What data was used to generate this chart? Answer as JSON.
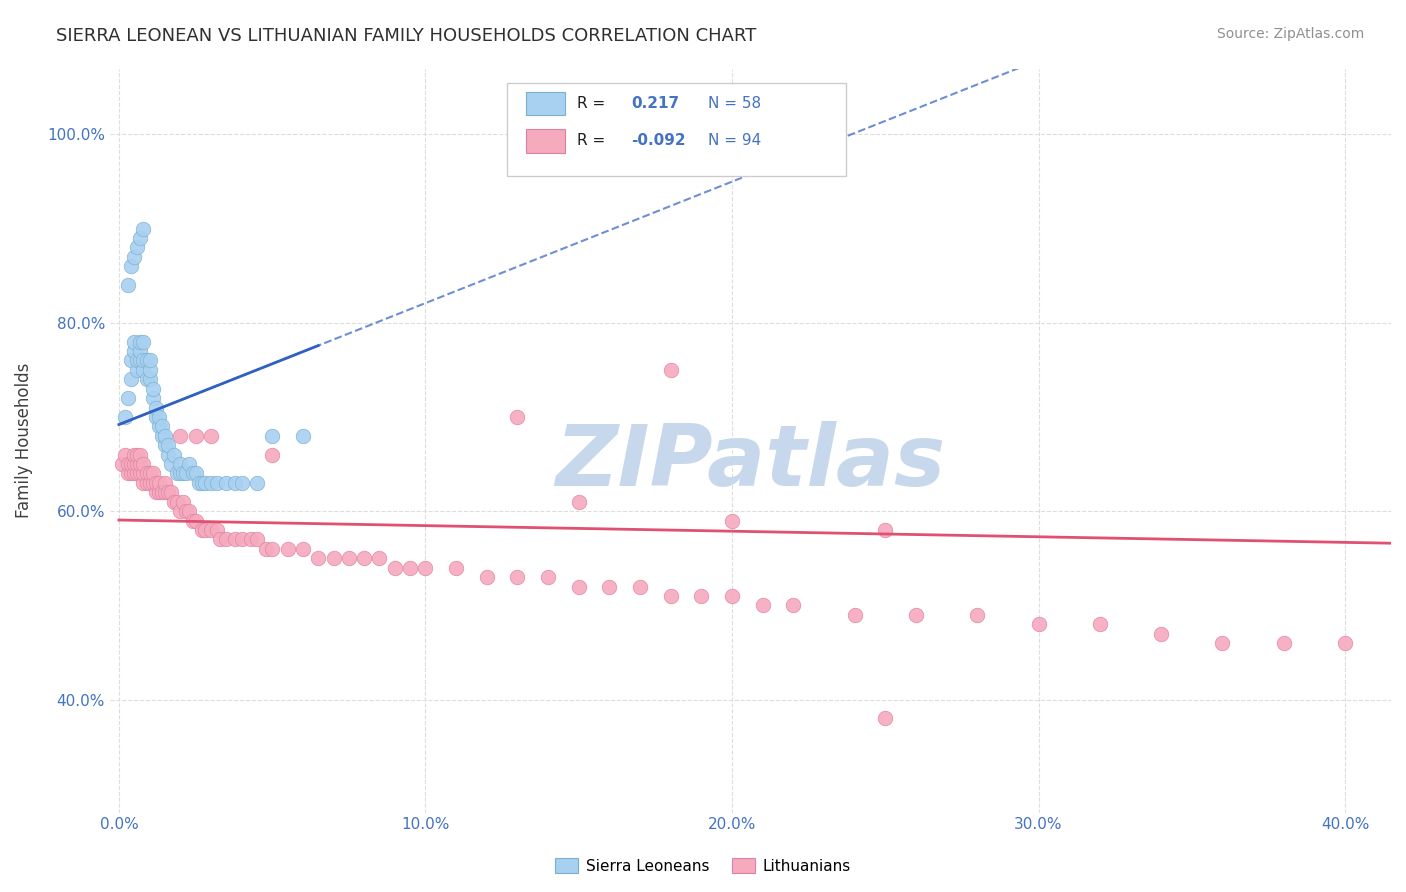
{
  "title": "SIERRA LEONEAN VS LITHUANIAN FAMILY HOUSEHOLDS CORRELATION CHART",
  "source": "Source: ZipAtlas.com",
  "ylabel": "Family Households",
  "x_ticks": [
    "0.0%",
    "10.0%",
    "20.0%",
    "30.0%",
    "40.0%"
  ],
  "x_tick_vals": [
    0.0,
    0.1,
    0.2,
    0.3,
    0.4
  ],
  "y_ticks": [
    "40.0%",
    "60.0%",
    "80.0%",
    "100.0%"
  ],
  "y_tick_vals": [
    0.4,
    0.6,
    0.8,
    1.0
  ],
  "y_min": 0.28,
  "y_max": 1.07,
  "x_min": -0.003,
  "x_max": 0.415,
  "legend_labels": [
    "Sierra Leoneans",
    "Lithuanians"
  ],
  "r_blue": 0.217,
  "n_blue": 58,
  "r_pink": -0.092,
  "n_pink": 94,
  "blue_color": "#A8D0F0",
  "pink_color": "#F5AABE",
  "blue_edge_color": "#7AAFD0",
  "pink_edge_color": "#E080A0",
  "blue_line_color": "#3060C0",
  "pink_line_color": "#E05070",
  "title_color": "#303030",
  "source_color": "#909090",
  "background_color": "#FFFFFF",
  "grid_color": "#DDDDDD",
  "tick_color": "#4472C4",
  "legend_r_color": "#4472C4",
  "watermark_color": "#C8D8EC",
  "blue_scatter_x": [
    0.002,
    0.003,
    0.004,
    0.004,
    0.005,
    0.005,
    0.006,
    0.006,
    0.007,
    0.007,
    0.007,
    0.008,
    0.008,
    0.008,
    0.009,
    0.009,
    0.01,
    0.01,
    0.01,
    0.011,
    0.011,
    0.012,
    0.012,
    0.013,
    0.013,
    0.014,
    0.014,
    0.015,
    0.015,
    0.016,
    0.016,
    0.017,
    0.018,
    0.019,
    0.02,
    0.02,
    0.021,
    0.022,
    0.023,
    0.024,
    0.025,
    0.026,
    0.027,
    0.028,
    0.03,
    0.032,
    0.035,
    0.038,
    0.04,
    0.045,
    0.003,
    0.004,
    0.005,
    0.006,
    0.007,
    0.008,
    0.05,
    0.06
  ],
  "blue_scatter_y": [
    0.7,
    0.72,
    0.74,
    0.76,
    0.77,
    0.78,
    0.75,
    0.76,
    0.76,
    0.77,
    0.78,
    0.75,
    0.76,
    0.78,
    0.74,
    0.76,
    0.74,
    0.75,
    0.76,
    0.72,
    0.73,
    0.7,
    0.71,
    0.69,
    0.7,
    0.68,
    0.69,
    0.67,
    0.68,
    0.66,
    0.67,
    0.65,
    0.66,
    0.64,
    0.64,
    0.65,
    0.64,
    0.64,
    0.65,
    0.64,
    0.64,
    0.63,
    0.63,
    0.63,
    0.63,
    0.63,
    0.63,
    0.63,
    0.63,
    0.63,
    0.84,
    0.86,
    0.87,
    0.88,
    0.89,
    0.9,
    0.68,
    0.68
  ],
  "pink_scatter_x": [
    0.001,
    0.002,
    0.003,
    0.003,
    0.004,
    0.004,
    0.005,
    0.005,
    0.005,
    0.006,
    0.006,
    0.006,
    0.007,
    0.007,
    0.007,
    0.008,
    0.008,
    0.008,
    0.009,
    0.009,
    0.01,
    0.01,
    0.011,
    0.011,
    0.012,
    0.012,
    0.013,
    0.013,
    0.014,
    0.015,
    0.015,
    0.016,
    0.017,
    0.018,
    0.019,
    0.02,
    0.021,
    0.022,
    0.023,
    0.024,
    0.025,
    0.027,
    0.028,
    0.03,
    0.032,
    0.033,
    0.035,
    0.038,
    0.04,
    0.043,
    0.045,
    0.048,
    0.05,
    0.055,
    0.06,
    0.065,
    0.07,
    0.075,
    0.08,
    0.085,
    0.09,
    0.095,
    0.1,
    0.11,
    0.12,
    0.13,
    0.14,
    0.15,
    0.16,
    0.17,
    0.18,
    0.19,
    0.2,
    0.21,
    0.22,
    0.24,
    0.26,
    0.28,
    0.3,
    0.32,
    0.34,
    0.36,
    0.38,
    0.4,
    0.15,
    0.2,
    0.25,
    0.25,
    0.13,
    0.18,
    0.02,
    0.025,
    0.03,
    0.05
  ],
  "pink_scatter_y": [
    0.65,
    0.66,
    0.64,
    0.65,
    0.64,
    0.65,
    0.64,
    0.65,
    0.66,
    0.64,
    0.65,
    0.66,
    0.64,
    0.65,
    0.66,
    0.63,
    0.64,
    0.65,
    0.63,
    0.64,
    0.63,
    0.64,
    0.63,
    0.64,
    0.62,
    0.63,
    0.62,
    0.63,
    0.62,
    0.62,
    0.63,
    0.62,
    0.62,
    0.61,
    0.61,
    0.6,
    0.61,
    0.6,
    0.6,
    0.59,
    0.59,
    0.58,
    0.58,
    0.58,
    0.58,
    0.57,
    0.57,
    0.57,
    0.57,
    0.57,
    0.57,
    0.56,
    0.56,
    0.56,
    0.56,
    0.55,
    0.55,
    0.55,
    0.55,
    0.55,
    0.54,
    0.54,
    0.54,
    0.54,
    0.53,
    0.53,
    0.53,
    0.52,
    0.52,
    0.52,
    0.51,
    0.51,
    0.51,
    0.5,
    0.5,
    0.49,
    0.49,
    0.49,
    0.48,
    0.48,
    0.47,
    0.46,
    0.46,
    0.46,
    0.61,
    0.59,
    0.58,
    0.38,
    0.7,
    0.75,
    0.68,
    0.68,
    0.68,
    0.66
  ]
}
